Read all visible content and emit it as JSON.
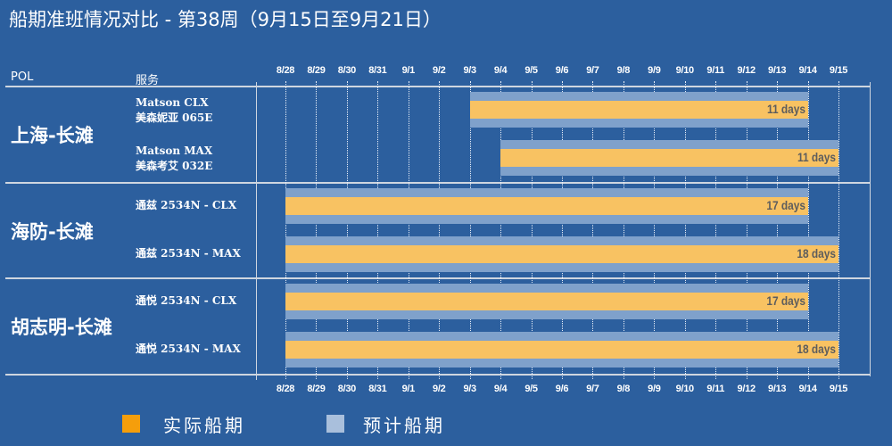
{
  "title": "船期准班情况对比 - 第38周（9月15日至9月21日）",
  "headers": {
    "pol": "POL",
    "service": "服务"
  },
  "colors": {
    "actual": "#f8c262",
    "planned": "#7fa1cb",
    "background": "#2c5f9e",
    "legend_actual": "#f59e0b",
    "legend_planned": "#a9bfdc"
  },
  "chart_data": {
    "type": "bar",
    "orientation": "horizontal-gantt",
    "x_ticks": [
      "8/28",
      "8/29",
      "8/30",
      "8/31",
      "9/1",
      "9/2",
      "9/3",
      "9/4",
      "9/5",
      "9/6",
      "9/7",
      "9/8",
      "9/9",
      "9/10",
      "9/11",
      "9/12",
      "9/13",
      "9/14",
      "9/15"
    ],
    "grid": true,
    "legend": {
      "position": "bottom",
      "items": [
        {
          "name": "实际船期",
          "color": "#f59e0b"
        },
        {
          "name": "预计船期",
          "color": "#a9bfdc"
        }
      ]
    },
    "groups": [
      {
        "pol": "上海-长滩",
        "rows": [
          {
            "service_line1": "Matson CLX",
            "service_line2": "美森妮亚 065E",
            "start": "9/3",
            "end": "9/14",
            "label": "11 days"
          },
          {
            "service_line1": "Matson MAX",
            "service_line2": "美森考艾 032E",
            "start": "9/4",
            "end": "9/15",
            "label": "11 days"
          }
        ]
      },
      {
        "pol": "海防-长滩",
        "rows": [
          {
            "service_line1": "通兹 2534N - CLX",
            "service_line2": "",
            "start": "8/28",
            "end": "9/14",
            "label": "17 days"
          },
          {
            "service_line1": "通兹 2534N - MAX",
            "service_line2": "",
            "start": "8/28",
            "end": "9/15",
            "label": "18 days"
          }
        ]
      },
      {
        "pol": "胡志明-长滩",
        "rows": [
          {
            "service_line1": "通悦 2534N - CLX",
            "service_line2": "",
            "start": "8/28",
            "end": "9/14",
            "label": "17 days"
          },
          {
            "service_line1": "通悦 2534N - MAX",
            "service_line2": "",
            "start": "8/28",
            "end": "9/15",
            "label": "18 days"
          }
        ]
      }
    ]
  }
}
